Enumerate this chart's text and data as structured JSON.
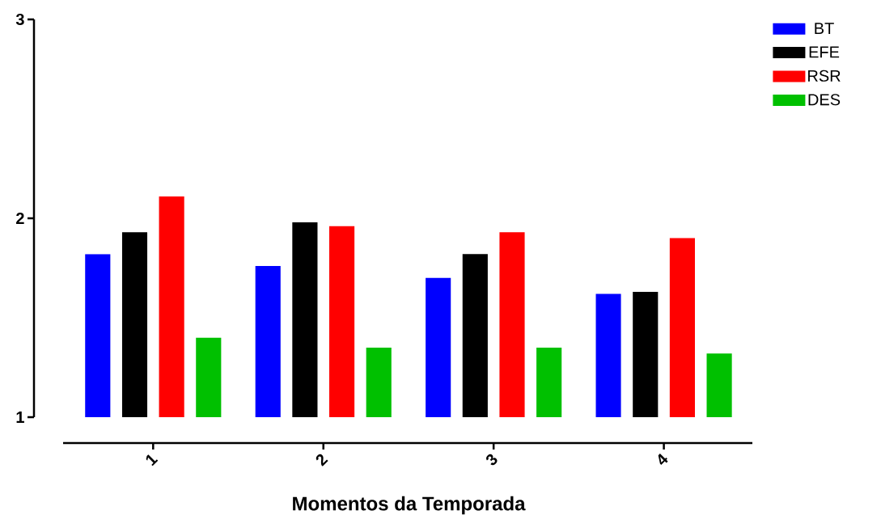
{
  "chart_data": {
    "type": "bar",
    "xlabel": "Momentos da Temporada",
    "categories": [
      "1",
      "2",
      "3",
      "4"
    ],
    "series": [
      {
        "name": "BT",
        "color": "#0000ff",
        "values": [
          1.82,
          1.76,
          1.7,
          1.62
        ]
      },
      {
        "name": "EFE",
        "color": "#000000",
        "values": [
          1.93,
          1.98,
          1.82,
          1.63
        ]
      },
      {
        "name": "RSR",
        "color": "#ff0000",
        "values": [
          2.11,
          1.96,
          1.93,
          1.9
        ]
      },
      {
        "name": "DES",
        "color": "#00c000",
        "values": [
          1.4,
          1.35,
          1.35,
          1.32
        ]
      }
    ],
    "ylim": [
      1,
      3
    ],
    "yticks": [
      1,
      2,
      3
    ],
    "legend": "top right"
  }
}
